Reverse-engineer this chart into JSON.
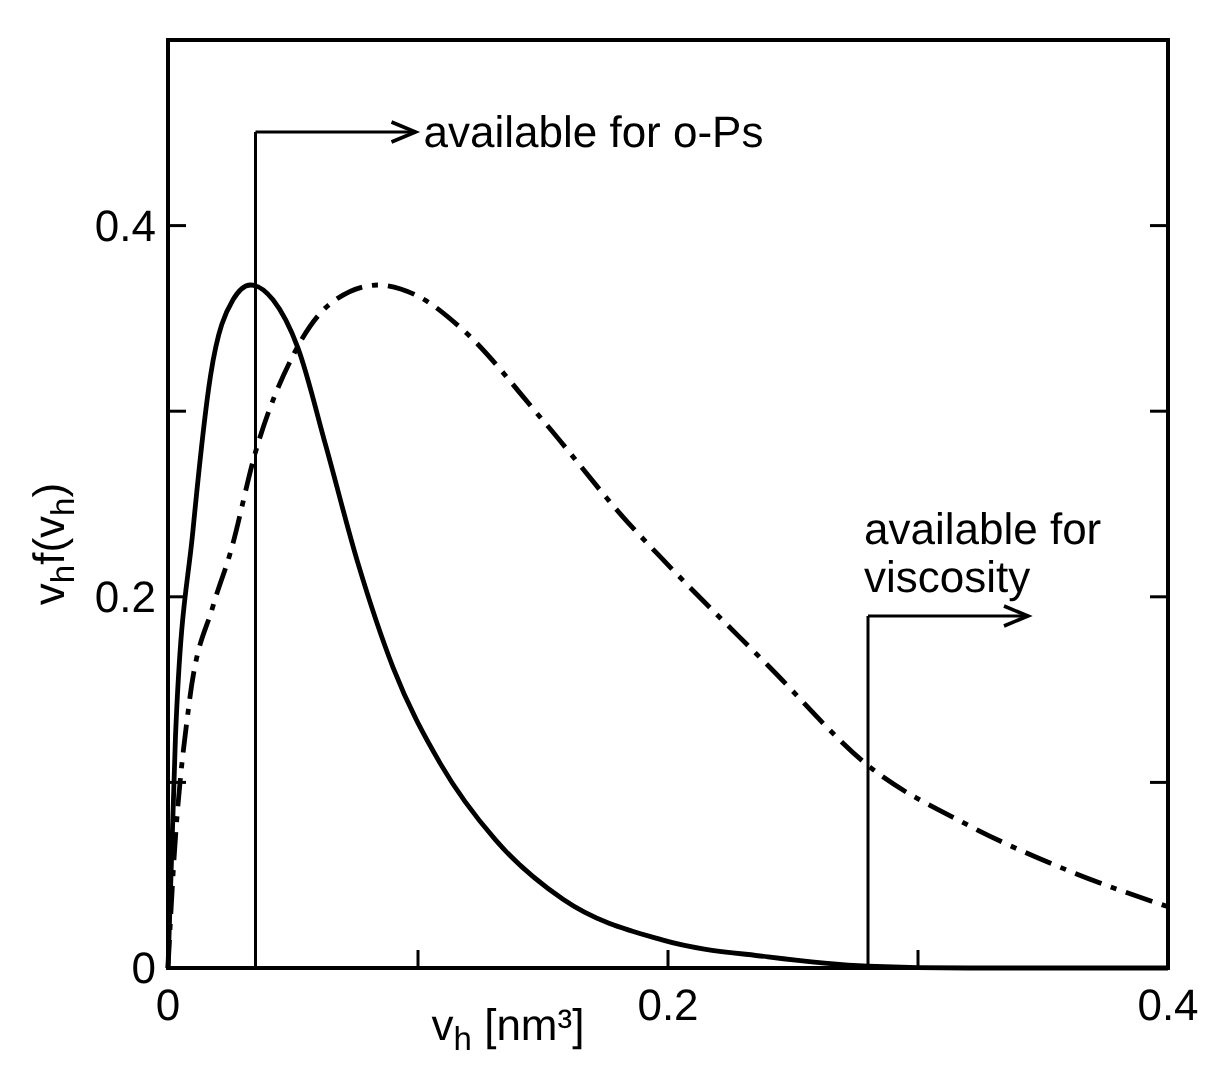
{
  "chart_data": {
    "type": "line",
    "xlabel": "v$_{h}$ [nm³]",
    "ylabel": "v$_{h}$f(v$_{h}$)",
    "xlim": [
      0,
      0.4
    ],
    "ylim": [
      0,
      0.5
    ],
    "xticks": [
      0,
      {
        "value": 0.1,
        "label": null
      },
      0.2,
      {
        "value": 0.3,
        "label": null
      },
      0.4
    ],
    "yticks": [
      0,
      {
        "value": 0.1,
        "label": null
      },
      0.2,
      {
        "value": 0.3,
        "label": null
      },
      0.4
    ],
    "grid": false,
    "marker": "none",
    "series": [
      {
        "color": "#000000",
        "line_style": "solid",
        "x": [
          0,
          0.003,
          0.01,
          0.017,
          0.026,
          0.033,
          0.042,
          0.052,
          0.063,
          0.076,
          0.09,
          0.109,
          0.131,
          0.158,
          0.198,
          0.24,
          0.28,
          0.32,
          0.4
        ],
        "values": [
          0,
          0.125,
          0.236,
          0.319,
          0.36,
          0.368,
          0.36,
          0.334,
          0.282,
          0.218,
          0.162,
          0.11,
          0.069,
          0.037,
          0.015,
          0.006,
          0.001,
          0,
          0
        ]
      },
      {
        "color": "#000000",
        "line_style": "dashed",
        "x": [
          0,
          0.002,
          0.0085,
          0.018,
          0.025,
          0.035,
          0.05,
          0.065,
          0.084,
          0.1,
          0.117,
          0.15,
          0.184,
          0.198,
          0.24,
          0.281,
          0.32,
          0.361,
          0.4
        ],
        "values": [
          0,
          0.05,
          0.143,
          0.195,
          0.224,
          0.278,
          0.33,
          0.358,
          0.368,
          0.362,
          0.345,
          0.295,
          0.24,
          0.22,
          0.163,
          0.108,
          0.077,
          0.052,
          0.033
        ]
      }
    ],
    "ref_lines": [
      {
        "axis": "x",
        "value": 0.035,
        "label": "available for o-Ps"
      },
      {
        "axis": "x",
        "value": 0.28,
        "label": "available for\nviscosity"
      }
    ]
  }
}
